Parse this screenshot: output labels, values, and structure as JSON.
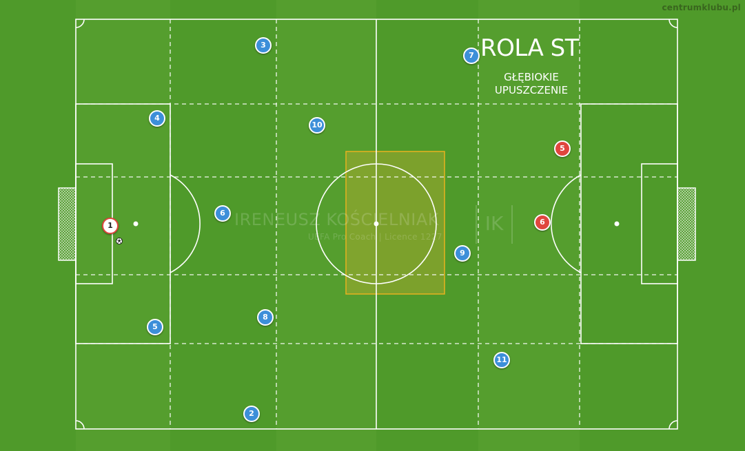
{
  "site_label": "centrumklubu.pl",
  "title": "ROLA ST",
  "subtitle": [
    "GŁĘBIOKIE",
    "UPUSZCZENIE"
  ],
  "watermark": {
    "name": "IRENEUSZ KOŚCIELNIAK",
    "subtitle": "UEFA Pro Coach   |   Licence 1227",
    "logo": "IK"
  },
  "colors": {
    "grass": "#4f9a2a",
    "lines": "#ffffff",
    "team_blue": "#3d8fd9",
    "team_red": "#e0463e",
    "highlight_zone": "#e0b020"
  },
  "players": {
    "goalkeeper": {
      "label": "1",
      "team": "white"
    },
    "blue": [
      "3",
      "7",
      "4",
      "10",
      "6",
      "9",
      "5",
      "8",
      "11",
      "2"
    ],
    "red": [
      "5",
      "6"
    ]
  },
  "ball_icon": "soccer-ball-icon"
}
